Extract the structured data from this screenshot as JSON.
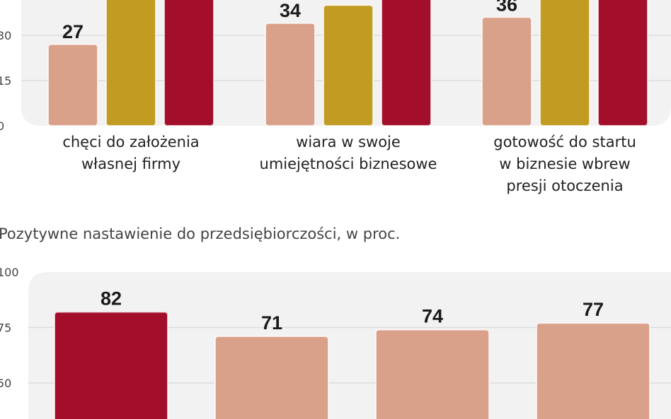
{
  "colors": {
    "pink": "#d9a08a",
    "gold": "#c19b22",
    "red": "#a30e2b",
    "panel": "#f2f2f2",
    "grid": "#dcdcdc"
  },
  "chart_data": [
    {
      "type": "bar",
      "title": "",
      "yticks": [
        0,
        15,
        30
      ],
      "categories": [
        [
          "chęci do założenia",
          "własnej firmy"
        ],
        [
          "wiara w swoje",
          "umiejętności biznesowe"
        ],
        [
          "gotowość do startu",
          "w biznesie wbrew",
          "presji otoczenia"
        ]
      ],
      "series": [
        {
          "color": "pink",
          "values": [
            27,
            34,
            36
          ],
          "labels": [
            "27",
            "34",
            "36"
          ]
        },
        {
          "color": "gold",
          "values": [
            null,
            40,
            null
          ],
          "labels": [
            "",
            "",
            ""
          ]
        },
        {
          "color": "red",
          "values": [
            null,
            null,
            null
          ],
          "labels": [
            "",
            "",
            ""
          ]
        }
      ],
      "grid": true
    },
    {
      "type": "bar",
      "title": "Pozytywne nastawienie do przedsiębiorczości, w proc.",
      "yticks": [
        50,
        75,
        100
      ],
      "ylim": [
        0,
        100
      ],
      "values": [
        82,
        71,
        74,
        77
      ],
      "labels": [
        "82",
        "71",
        "74",
        "77"
      ],
      "colors": [
        "red",
        "pink",
        "pink",
        "pink"
      ],
      "grid": true
    }
  ]
}
